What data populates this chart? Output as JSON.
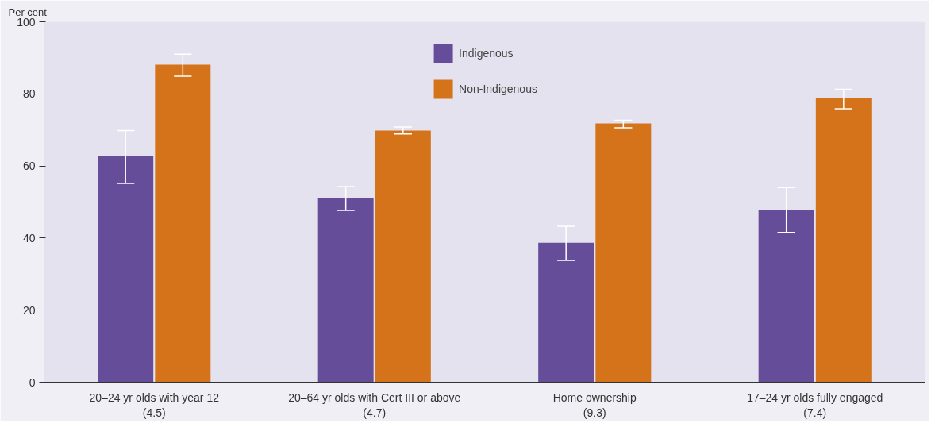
{
  "chart_data": {
    "type": "bar",
    "ylabel": "Per cent",
    "categories": [
      "20–24 yr olds with year 12\n(4.5)",
      "20–64 yr olds with Cert III or above\n(4.7)",
      "Home ownership\n(9.3)",
      "17–24 yr olds fully engaged\n(7.4)"
    ],
    "series": [
      {
        "name": "Indigenous",
        "color": "#654d9a",
        "values": [
          62.7,
          51.1,
          38.7,
          47.9
        ],
        "errors": [
          [
            55.2,
            69.8
          ],
          [
            47.7,
            54.3
          ],
          [
            33.8,
            43.3
          ],
          [
            41.6,
            54.0
          ]
        ]
      },
      {
        "name": "Non-Indigenous",
        "color": "#d5731a",
        "values": [
          88.1,
          69.8,
          71.8,
          78.8
        ],
        "errors": [
          [
            84.9,
            91.0
          ],
          [
            68.9,
            70.8
          ],
          [
            70.6,
            72.7
          ],
          [
            75.9,
            81.3
          ]
        ]
      }
    ],
    "ylim": [
      0,
      100
    ],
    "yticks": [
      0,
      20,
      40,
      60,
      80,
      100
    ],
    "grid": false,
    "legend": "top"
  }
}
